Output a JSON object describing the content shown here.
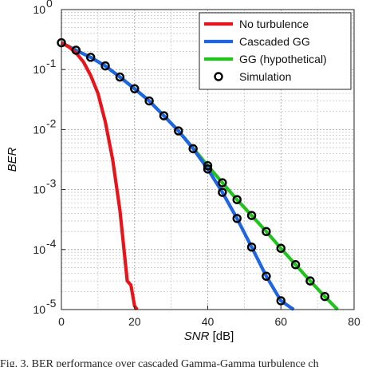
{
  "chart_data": {
    "type": "line",
    "title": "",
    "xlabel_italic": "SNR",
    "xlabel_unit": " [dB]",
    "ylabel": "BER",
    "x_ticks": [
      0,
      20,
      40,
      60,
      80
    ],
    "y_ticks": [
      {
        "value": 1.0,
        "base": "10",
        "exp": "0"
      },
      {
        "value": 0.1,
        "base": "10",
        "exp": "-1"
      },
      {
        "value": 0.01,
        "base": "10",
        "exp": "-2"
      },
      {
        "value": 0.001,
        "base": "10",
        "exp": "-3"
      },
      {
        "value": 0.0001,
        "base": "10",
        "exp": "-4"
      },
      {
        "value": 1e-05,
        "base": "10",
        "exp": "-5"
      }
    ],
    "xlim": [
      0,
      80
    ],
    "ylim": [
      1e-05,
      1
    ],
    "yscale": "log",
    "grid": true,
    "legend_position": "top-right",
    "series": [
      {
        "name": "No turbulence",
        "color": "#e8141b",
        "style": "line",
        "x": [
          0,
          2,
          4,
          6,
          8,
          10,
          12,
          14,
          16,
          18,
          19,
          20,
          20.7
        ],
        "y": [
          0.28,
          0.24,
          0.19,
          0.135,
          0.08,
          0.04,
          0.0135,
          0.0032,
          0.00045,
          3e-05,
          2.55e-05,
          1.15e-05,
          1e-05
        ]
      },
      {
        "name": "Cascaded GG",
        "color": "#1f64e0",
        "style": "line",
        "x": [
          0,
          4,
          8,
          12,
          16,
          20,
          24,
          28,
          32,
          36,
          40,
          44,
          48,
          52,
          56,
          60,
          63.5
        ],
        "y": [
          0.28,
          0.21,
          0.16,
          0.115,
          0.075,
          0.048,
          0.03,
          0.017,
          0.0095,
          0.0048,
          0.0022,
          0.0009,
          0.00033,
          0.00011,
          3.6e-05,
          1.4e-05,
          1e-05
        ]
      },
      {
        "name": "GG (hypothetical)",
        "color": "#22c21f",
        "style": "line",
        "x": [
          0,
          4,
          8,
          12,
          16,
          20,
          24,
          28,
          32,
          36,
          40,
          44,
          48,
          52,
          56,
          60,
          64,
          68,
          72,
          75.5
        ],
        "y": [
          0.28,
          0.21,
          0.16,
          0.115,
          0.075,
          0.048,
          0.03,
          0.017,
          0.0095,
          0.0049,
          0.0025,
          0.0013,
          0.00068,
          0.00037,
          0.0002,
          0.000105,
          5.6e-05,
          3e-05,
          1.65e-05,
          1e-05
        ]
      },
      {
        "name": "Simulation",
        "color": "#000000",
        "style": "marker",
        "x": [
          0,
          4,
          8,
          12,
          16,
          20,
          24,
          28,
          32,
          36,
          40,
          44,
          48,
          52,
          56,
          60,
          64,
          68,
          72
        ],
        "y": [
          0.28,
          0.21,
          0.16,
          0.115,
          0.075,
          0.048,
          0.03,
          0.017,
          0.0095,
          0.0048,
          0.0022,
          0.0009,
          0.00033,
          0.00011,
          3.6e-05,
          1.4e-05,
          5.6e-05,
          3e-05,
          1.65e-05
        ],
        "y_upper_branch": [
          0.0025,
          0.0013,
          0.00068,
          0.00037,
          0.0002,
          0.000105
        ]
      }
    ]
  },
  "caption": "Fig. 3.  BER performance over cascaded Gamma-Gamma turbulence ch"
}
